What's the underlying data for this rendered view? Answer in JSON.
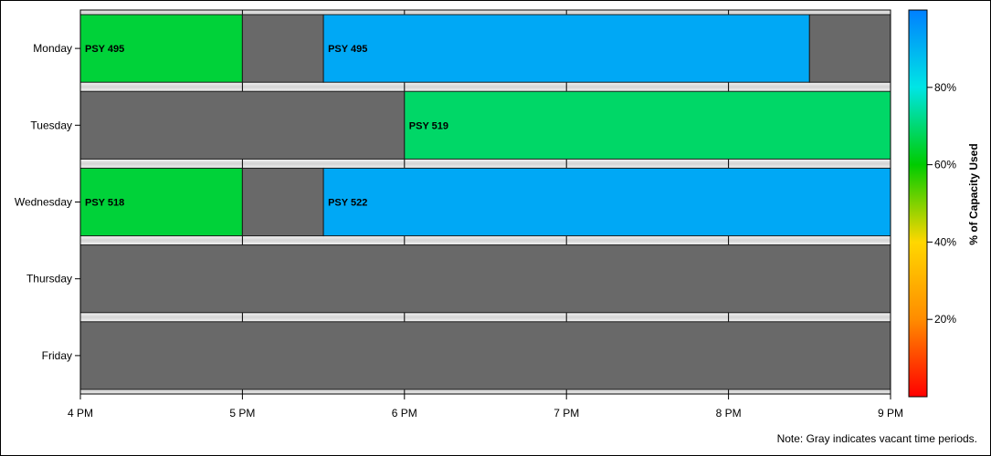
{
  "chart_data": {
    "type": "gantt",
    "x_ticks": [
      "4 PM",
      "5 PM",
      "6 PM",
      "7 PM",
      "8 PM",
      "9 PM"
    ],
    "xlim": [
      16,
      21
    ],
    "days": [
      "Monday",
      "Tuesday",
      "Wednesday",
      "Thursday",
      "Friday"
    ],
    "vacant_color": "#696969",
    "rows": [
      {
        "day": "Monday",
        "segments": [
          {
            "start": 16.0,
            "end": 17.0,
            "label": "PSY 495",
            "capacity_pct": 65
          },
          {
            "start": 17.0,
            "end": 17.5,
            "label": "",
            "vacant": true
          },
          {
            "start": 17.5,
            "end": 20.5,
            "label": "PSY 495",
            "capacity_pct": 92
          },
          {
            "start": 20.5,
            "end": 21.0,
            "label": "",
            "vacant": true
          }
        ]
      },
      {
        "day": "Tuesday",
        "segments": [
          {
            "start": 16.0,
            "end": 18.0,
            "label": "",
            "vacant": true
          },
          {
            "start": 18.0,
            "end": 21.0,
            "label": "PSY 519",
            "capacity_pct": 69
          }
        ]
      },
      {
        "day": "Wednesday",
        "segments": [
          {
            "start": 16.0,
            "end": 17.0,
            "label": "PSY 518",
            "capacity_pct": 65
          },
          {
            "start": 17.0,
            "end": 17.5,
            "label": "",
            "vacant": true
          },
          {
            "start": 17.5,
            "end": 21.0,
            "label": "PSY 522",
            "capacity_pct": 92
          }
        ]
      },
      {
        "day": "Thursday",
        "segments": [
          {
            "start": 16.0,
            "end": 21.0,
            "label": "",
            "vacant": true
          }
        ]
      },
      {
        "day": "Friday",
        "segments": [
          {
            "start": 16.0,
            "end": 21.0,
            "label": "",
            "vacant": true
          }
        ]
      }
    ],
    "legend": {
      "title": "% of Capacity Used",
      "range": [
        0,
        100
      ],
      "ticks": [
        20,
        40,
        60,
        80
      ],
      "tick_labels": [
        "20%",
        "40%",
        "60%",
        "80%"
      ],
      "colors": [
        "#ff0000",
        "#ff8c00",
        "#ffd700",
        "#00cc00",
        "#00e5e5",
        "#0080ff"
      ]
    },
    "note": "Note: Gray indicates vacant time periods."
  }
}
